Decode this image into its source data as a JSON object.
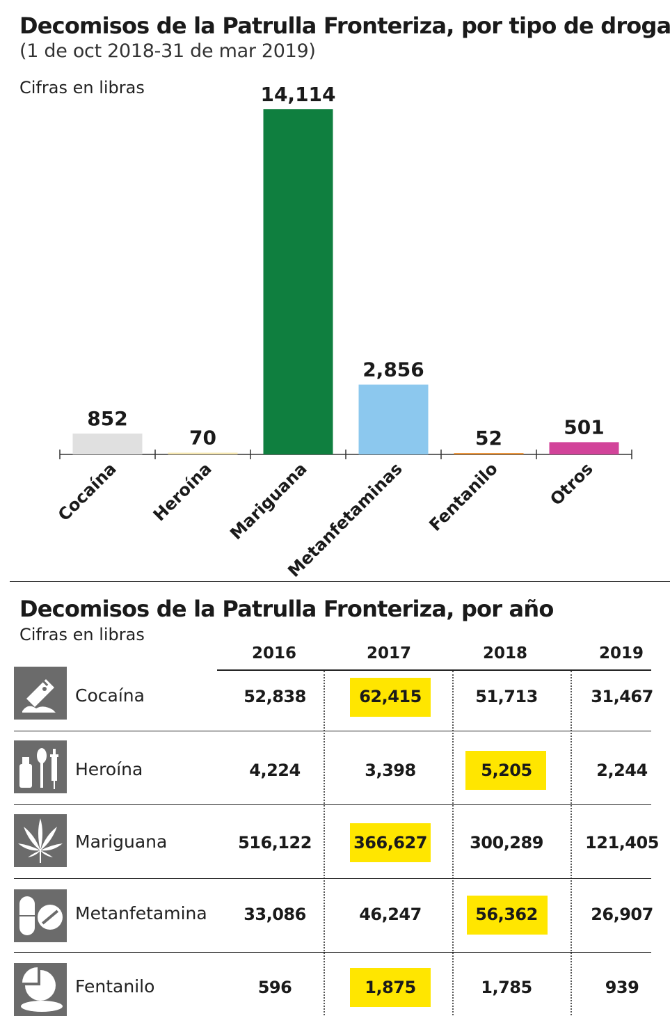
{
  "chart_data": {
    "type": "bar",
    "title": "Decomisos de la Patrulla Fronteriza, por tipo de droga",
    "subtitle": "(1 de oct 2018-31 de mar 2019)",
    "unit_note": "Cifras en libras",
    "categories": [
      "Cocaína",
      "Heroína",
      "Mariguana",
      "Metanfetaminas",
      "Fentanilo",
      "Otros"
    ],
    "values": [
      852,
      70,
      14114,
      2856,
      52,
      501
    ],
    "value_labels": [
      "852",
      "70",
      "14,114",
      "2,856",
      "52",
      "501"
    ],
    "colors": [
      "#e0e0e0",
      "#f5e6b0",
      "#0f7f3f",
      "#8cc8ee",
      "#e8851f",
      "#d2449a"
    ],
    "ylim": [
      0,
      14114
    ],
    "grid": false
  },
  "table": {
    "title": "Decomisos de la Patrulla Fronteriza, por año",
    "unit_note": "Cifras en libras",
    "years": [
      "2016",
      "2017",
      "2018",
      "2019"
    ],
    "highlight_color": "#ffe600",
    "rows": [
      {
        "drug": "Cocaína",
        "icon": "cocaine-razor-icon",
        "values": [
          "52,838",
          "62,415",
          "51,713",
          "31,467"
        ],
        "highlight": 1
      },
      {
        "drug": "Heroína",
        "icon": "heroin-paraphernalia-icon",
        "values": [
          "4,224",
          "3,398",
          "5,205",
          "2,244"
        ],
        "highlight": 2
      },
      {
        "drug": "Mariguana",
        "icon": "cannabis-leaf-icon",
        "values": [
          "516,122",
          "366,627",
          "300,289",
          "121,405"
        ],
        "highlight": 1
      },
      {
        "drug": "Metanfetamina",
        "icon": "pills-icon",
        "values": [
          "33,086",
          "46,247",
          "56,362",
          "26,907"
        ],
        "highlight": 2
      },
      {
        "drug": "Fentanilo",
        "icon": "tablet-icon",
        "values": [
          "596",
          "1,875",
          "1,785",
          "939"
        ],
        "highlight": 1
      }
    ]
  }
}
